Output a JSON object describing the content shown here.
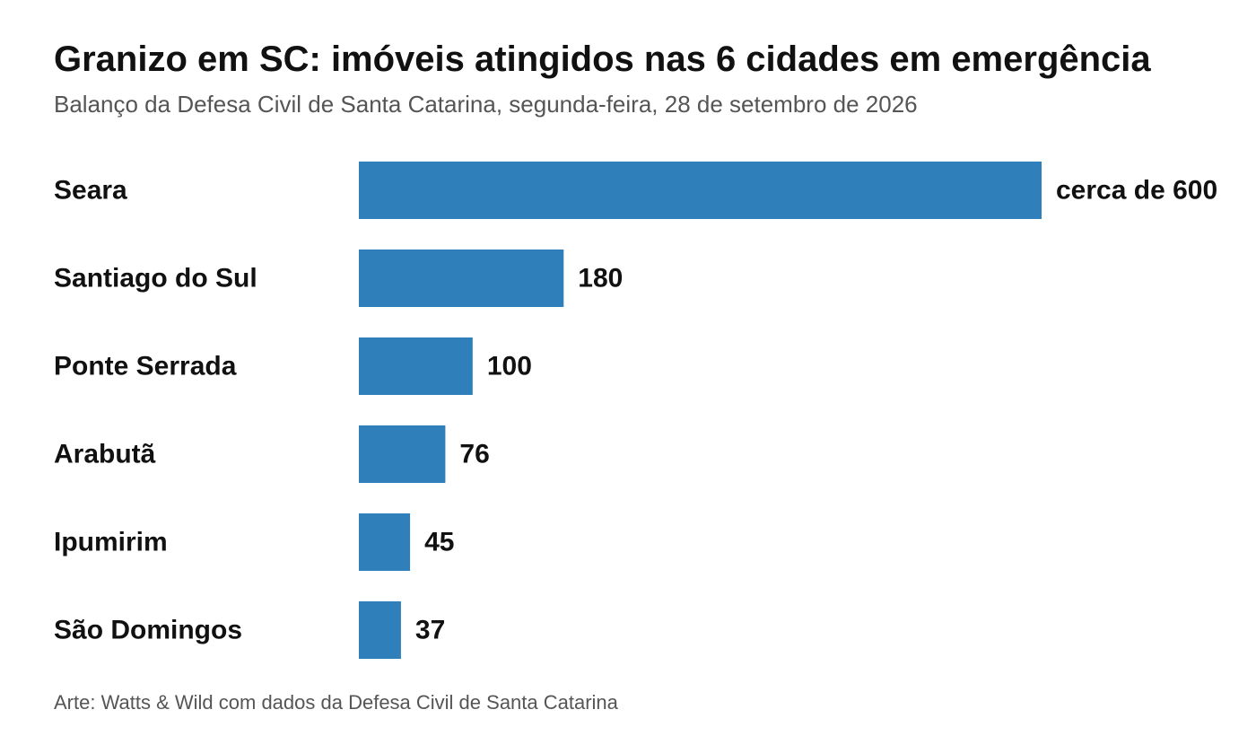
{
  "chart_data": {
    "type": "bar",
    "orientation": "horizontal",
    "title": "Granizo em SC: imóveis atingidos nas 6 cidades em emergência",
    "subtitle": "Balanço da Defesa Civil de Santa Catarina, segunda-feira, 28 de setembro de 2026",
    "categories": [
      "Seara",
      "Santiago do Sul",
      "Ponte Serrada",
      "Arabutã",
      "Ipumirim",
      "São Domingos"
    ],
    "values": [
      600,
      180,
      100,
      76,
      45,
      37
    ],
    "value_labels": [
      "cerca de 600",
      "180",
      "100",
      "76",
      "45",
      "37"
    ],
    "xlabel": "",
    "ylabel": "",
    "xlim": [
      0,
      600
    ],
    "grid": false,
    "legend": "none",
    "bar_color": "#2e7fba",
    "source": "Arte: Watts & Wild com dados da Defesa Civil de Santa Catarina"
  }
}
